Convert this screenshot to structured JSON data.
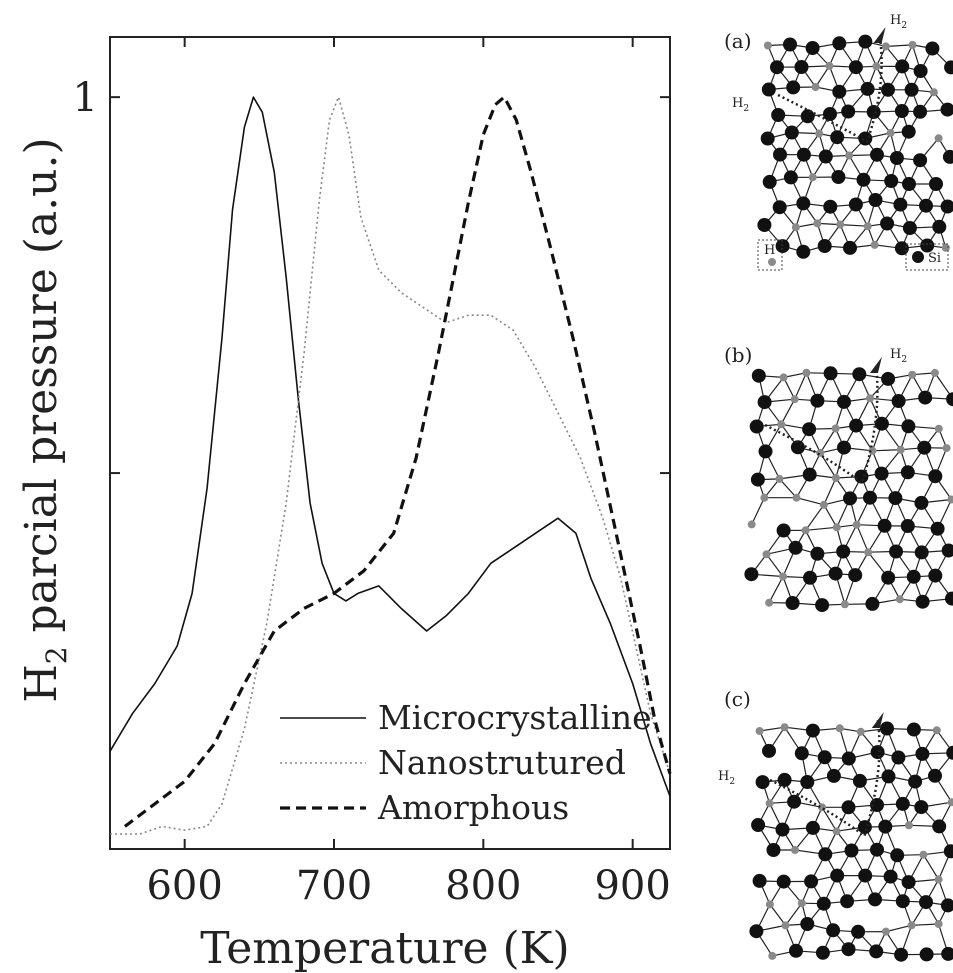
{
  "chart_data": {
    "type": "line",
    "title": "",
    "xlabel": "Temperature (K)",
    "ylabel_main": "H",
    "ylabel_sub": "2",
    "ylabel_rest": " parcial pressure (a.u.)",
    "xlim": [
      550,
      925
    ],
    "ylim": [
      0.0,
      1.08
    ],
    "xticks": [
      600,
      700,
      800,
      900
    ],
    "xtick_labels": [
      "600",
      "700",
      "800",
      "900"
    ],
    "yticks": [
      0.5,
      1.0
    ],
    "ytick_labels": [
      "",
      "1"
    ],
    "grid": false,
    "legend_position": "bottom-center",
    "series": [
      {
        "name": "Microcrystalline",
        "style": "solid",
        "color": "#111111",
        "x": [
          550,
          565,
          580,
          595,
          605,
          615,
          625,
          632,
          640,
          646,
          652,
          660,
          668,
          676,
          684,
          692,
          700,
          708,
          716,
          730,
          745,
          762,
          775,
          790,
          805,
          820,
          835,
          850,
          862,
          872,
          885,
          900,
          912,
          925
        ],
        "y": [
          0.13,
          0.18,
          0.22,
          0.27,
          0.34,
          0.48,
          0.68,
          0.85,
          0.96,
          1.0,
          0.98,
          0.9,
          0.76,
          0.6,
          0.46,
          0.38,
          0.34,
          0.33,
          0.34,
          0.35,
          0.32,
          0.29,
          0.31,
          0.34,
          0.38,
          0.4,
          0.42,
          0.44,
          0.42,
          0.36,
          0.3,
          0.22,
          0.14,
          0.07
        ]
      },
      {
        "name": "Nanostrutured",
        "style": "dotted",
        "color": "#888888",
        "x": [
          550,
          570,
          585,
          600,
          615,
          625,
          640,
          655,
          668,
          680,
          690,
          697,
          703,
          710,
          718,
          730,
          745,
          760,
          775,
          790,
          805,
          820,
          835,
          850,
          865,
          880,
          892,
          902,
          912,
          925
        ],
        "y": [
          0.02,
          0.02,
          0.03,
          0.025,
          0.03,
          0.06,
          0.16,
          0.3,
          0.46,
          0.66,
          0.86,
          0.97,
          1.0,
          0.95,
          0.84,
          0.77,
          0.74,
          0.72,
          0.7,
          0.71,
          0.71,
          0.69,
          0.64,
          0.58,
          0.52,
          0.44,
          0.36,
          0.27,
          0.18,
          0.1
        ]
      },
      {
        "name": "Amorphous",
        "style": "dashed",
        "color": "#111111",
        "x": [
          560,
          580,
          600,
          620,
          640,
          660,
          680,
          700,
          720,
          740,
          755,
          770,
          780,
          790,
          800,
          808,
          814,
          822,
          832,
          845,
          860,
          875,
          890,
          905,
          915,
          925
        ],
        "y": [
          0.03,
          0.06,
          0.09,
          0.14,
          0.22,
          0.29,
          0.32,
          0.34,
          0.37,
          0.42,
          0.52,
          0.66,
          0.76,
          0.86,
          0.95,
          0.99,
          1.0,
          0.97,
          0.9,
          0.8,
          0.68,
          0.55,
          0.41,
          0.27,
          0.17,
          0.1
        ]
      }
    ]
  },
  "panels": {
    "a": {
      "label": "(a)",
      "h2_labels": [
        {
          "main": "H",
          "sub": "2"
        },
        {
          "main": "H",
          "sub": "2"
        }
      ],
      "legend_h": "H",
      "legend_si": "Si"
    },
    "b": {
      "label": "(b)",
      "h2_labels": [
        {
          "main": "H",
          "sub": "2"
        }
      ]
    },
    "c": {
      "label": "(c)",
      "h2_labels": [
        {
          "main": "H",
          "sub": "2"
        }
      ]
    }
  }
}
